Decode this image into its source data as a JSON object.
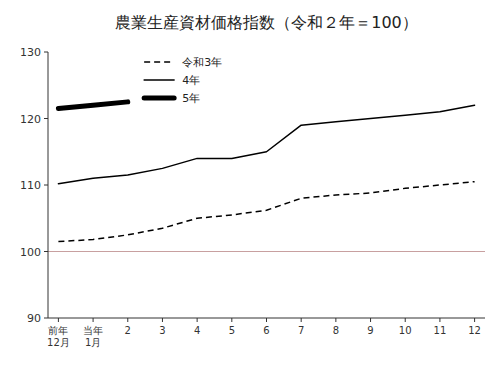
{
  "chart_data": {
    "type": "line",
    "title": "農業生産資材価格指数（令和２年＝100）",
    "categories": [
      "前年\n12月",
      "当年\n1月",
      "2",
      "3",
      "4",
      "5",
      "6",
      "7",
      "8",
      "9",
      "10",
      "11",
      "12"
    ],
    "series": [
      {
        "name": "令和3年",
        "color": "#000000",
        "line_style": "dashed",
        "values": [
          101.5,
          101.8,
          102.5,
          103.5,
          105.0,
          105.5,
          106.2,
          108.0,
          108.5,
          108.8,
          109.5,
          110.0,
          110.5
        ]
      },
      {
        "name": "4年",
        "color": "#000000",
        "line_style": "solid",
        "values": [
          110.2,
          111.0,
          111.5,
          112.5,
          114.0,
          114.0,
          115.0,
          119.0,
          119.5,
          120.0,
          120.5,
          121.0,
          122.0
        ]
      },
      {
        "name": "5年",
        "color": "#000000",
        "line_style": "thick",
        "values": [
          121.5,
          122.0,
          122.5,
          null,
          null,
          null,
          null,
          null,
          null,
          null,
          null,
          null,
          null
        ]
      }
    ],
    "reference_lines": [
      {
        "value": 100,
        "color": "#c8a0a0"
      }
    ],
    "ylim": [
      90,
      130
    ],
    "yticks": [
      90,
      100,
      110,
      120,
      130
    ],
    "grid": false,
    "legend": "upper left"
  }
}
